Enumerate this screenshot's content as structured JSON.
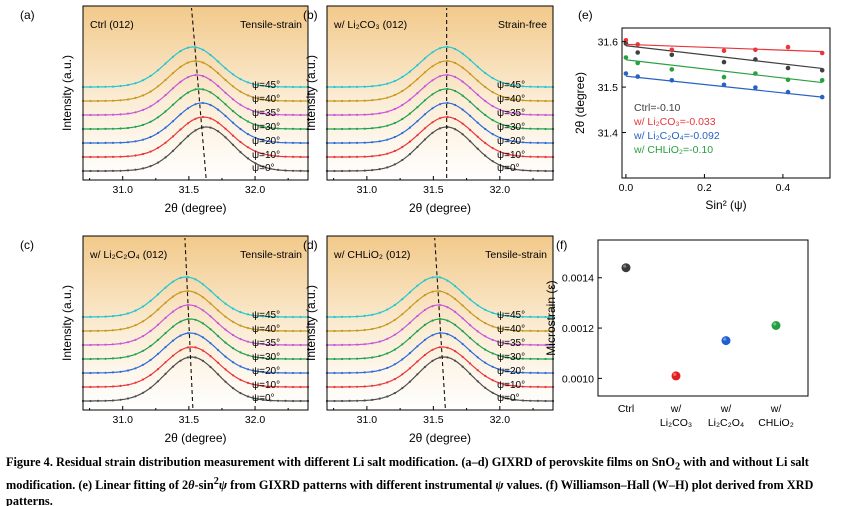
{
  "caption": {
    "lead": "Figure 4. Residual strain distribution measurement with different Li salt modification. (a–d) GIXRD of perovskite films on SnO",
    "p2": " with and without Li salt modification. (e) Linear fitting of 2",
    "p3": "-sin",
    "p4": " from GIXRD patterns with different instrumental ",
    "p5": " values. (f) Williamson–Hall (W–H) plot derived from XRD patterns.",
    "sub2": "2",
    "sup2": "2",
    "theta": "θ",
    "psi": "ψ"
  },
  "chart_data": [
    {
      "type": "line",
      "panel": "(a)",
      "label": "Ctrl (012)",
      "condition": "Tensile-strain",
      "xlabel": "2θ (degree)",
      "ylabel": "Intensity (a.u.)",
      "xlim": [
        30.7,
        32.4
      ],
      "xticks": [
        "31.0",
        "31.5",
        "32.0"
      ],
      "series_labels": [
        "ψ=0°",
        "ψ=10°",
        "ψ=20°",
        "ψ=30°",
        "ψ=35°",
        "ψ=40°",
        "ψ=45°"
      ],
      "peak_positions": [
        31.63,
        31.61,
        31.6,
        31.58,
        31.56,
        31.55,
        31.53
      ],
      "dashed_line": [
        31.63,
        31.52
      ]
    },
    {
      "type": "line",
      "panel": "(b)",
      "label": "w/ Li₂CO₃ (012)",
      "condition": "Strain-free",
      "xlabel": "2θ (degree)",
      "ylabel": "Intensity (a.u.)",
      "xlim": [
        30.7,
        32.4
      ],
      "xticks": [
        "31.0",
        "31.5",
        "32.0"
      ],
      "series_labels": [
        "ψ=0°",
        "ψ=10°",
        "ψ=20°",
        "ψ=30°",
        "ψ=35°",
        "ψ=40°",
        "ψ=45°"
      ],
      "peak_positions": [
        31.6,
        31.6,
        31.6,
        31.6,
        31.6,
        31.6,
        31.6
      ],
      "dashed_line": [
        31.6,
        31.6
      ]
    },
    {
      "type": "line",
      "panel": "(c)",
      "label": "w/ Li₂C₂O₄ (012)",
      "condition": "Tensile-strain",
      "xlabel": "2θ (degree)",
      "ylabel": "Intensity (a.u.)",
      "xlim": [
        30.7,
        32.4
      ],
      "xticks": [
        "31.0",
        "31.5",
        "32.0"
      ],
      "series_labels": [
        "ψ=0°",
        "ψ=10°",
        "ψ=20°",
        "ψ=30°",
        "ψ=35°",
        "ψ=40°",
        "ψ=45°"
      ],
      "peak_positions": [
        31.52,
        31.52,
        31.51,
        31.51,
        31.5,
        31.49,
        31.48
      ],
      "dashed_line": [
        31.53,
        31.47
      ]
    },
    {
      "type": "line",
      "panel": "(d)",
      "label": "w/ CHLiO₂ (012)",
      "condition": "Tensile-strain",
      "xlabel": "2θ (degree)",
      "ylabel": "Intensity (a.u.)",
      "xlim": [
        30.7,
        32.4
      ],
      "xticks": [
        "31.0",
        "31.5",
        "32.0"
      ],
      "series_labels": [
        "ψ=0°",
        "ψ=10°",
        "ψ=20°",
        "ψ=30°",
        "ψ=35°",
        "ψ=40°",
        "ψ=45°"
      ],
      "peak_positions": [
        31.58,
        31.57,
        31.56,
        31.55,
        31.54,
        31.53,
        31.52
      ],
      "dashed_line": [
        31.59,
        31.51
      ]
    },
    {
      "type": "scatter",
      "panel": "(e)",
      "xlabel": "Sin² (ψ)",
      "ylabel": "2θ (degree)",
      "xlim": [
        -0.01,
        0.52
      ],
      "ylim": [
        31.3,
        31.63
      ],
      "xticks": [
        "0.0",
        "0.2",
        "0.4"
      ],
      "yticks": [
        "31.4",
        "31.5",
        "31.6"
      ],
      "x": [
        0,
        0.03,
        0.117,
        0.25,
        0.33,
        0.413,
        0.5
      ],
      "series": [
        {
          "name": "Ctrl=-0.10",
          "color": "#404040",
          "values": [
            31.596,
            31.576,
            31.571,
            31.555,
            31.561,
            31.542,
            31.537
          ],
          "fit": [
            31.591,
            31.541
          ]
        },
        {
          "name": "w/ Li₂CO₃=-0.033",
          "color": "#e8363a",
          "values": [
            31.603,
            31.594,
            31.582,
            31.58,
            31.582,
            31.588,
            31.575
          ],
          "fit": [
            31.594,
            31.578
          ]
        },
        {
          "name": "w/ Li₂C₂O₄=-0.092",
          "color": "#2862c4",
          "values": [
            31.53,
            31.523,
            31.515,
            31.505,
            31.499,
            31.489,
            31.478
          ],
          "fit": [
            31.524,
            31.478
          ]
        },
        {
          "name": "w/ CHLiO₂=-0.10",
          "color": "#27a040",
          "values": [
            31.565,
            31.553,
            31.539,
            31.522,
            31.53,
            31.516,
            31.515
          ],
          "fit": [
            31.56,
            31.51
          ]
        }
      ]
    },
    {
      "type": "scatter",
      "panel": "(f)",
      "xlabel": "",
      "ylabel": "Microstrain (ε)",
      "ylim": [
        0.00093,
        0.00155
      ],
      "yticks": [
        "0.0010",
        "0.0012",
        "0.0014"
      ],
      "categories": [
        {
          "l1": "Ctrl",
          "l2": "",
          "l2rest": ""
        },
        {
          "l1": "w/",
          "l2": "Li₂CO₃",
          "l2rest": ""
        },
        {
          "l1": "w/",
          "l2": "Li₂C₂O₄",
          "l2rest": ""
        },
        {
          "l1": "w/",
          "l2": "CHLiO₂",
          "l2rest": ""
        }
      ],
      "values": [
        0.00144,
        0.00101,
        0.00115,
        0.00121
      ],
      "colors": [
        "#3a3a3a",
        "#e02020",
        "#1f5fd0",
        "#22a040"
      ]
    }
  ]
}
